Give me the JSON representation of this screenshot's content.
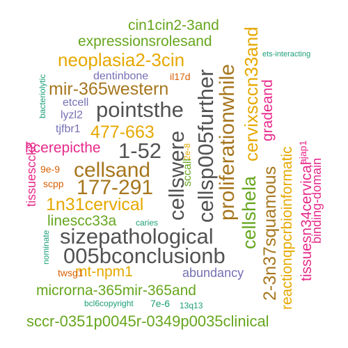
{
  "palette": {
    "dark_gray": "#525252",
    "orange": "#e6a800",
    "brown": "#a6761d",
    "green": "#66a61e",
    "purple": "#7570b3",
    "magenta": "#e7298a",
    "teal": "#1b9e77",
    "rust": "#d95f02"
  },
  "words": [
    {
      "text": "cin1cin2-3and",
      "color": "green"
    },
    {
      "text": "expressionsrolesand",
      "color": "green"
    },
    {
      "text": "neoplasia2-3cin",
      "color": "orange"
    },
    {
      "text": "dentinbone",
      "color": "purple"
    },
    {
      "text": "il17d",
      "color": "rust"
    },
    {
      "text": "mir-365western",
      "color": "brown"
    },
    {
      "text": "etcell",
      "color": "purple"
    },
    {
      "text": "pointsthe",
      "color": "dark_gray"
    },
    {
      "text": "lyzl2",
      "color": "purple"
    },
    {
      "text": "tjfbr1",
      "color": "purple"
    },
    {
      "text": "477-663",
      "color": "orange"
    },
    {
      "text": "hcerepicthe",
      "color": "magenta"
    },
    {
      "text": "1-52",
      "color": "dark_gray"
    },
    {
      "text": "cellsand",
      "color": "brown"
    },
    {
      "text": "9e-9",
      "color": "rust"
    },
    {
      "text": "scpp",
      "color": "rust"
    },
    {
      "text": "177-291",
      "color": "brown"
    },
    {
      "text": "1n31cervical",
      "color": "orange"
    },
    {
      "text": "linescc33a",
      "color": "green"
    },
    {
      "text": "caries",
      "color": "teal"
    },
    {
      "text": "sizepathological",
      "color": "dark_gray"
    },
    {
      "text": "005bconclusionb",
      "color": "dark_gray"
    },
    {
      "text": "mt-npm1",
      "color": "orange"
    },
    {
      "text": "twsg1",
      "color": "rust"
    },
    {
      "text": "abundancy",
      "color": "purple"
    },
    {
      "text": "microrna-365mir-365and",
      "color": "green"
    },
    {
      "text": "bcl6copyright",
      "color": "teal"
    },
    {
      "text": "7e-6",
      "color": "teal"
    },
    {
      "text": "13q13",
      "color": "teal"
    },
    {
      "text": "sccr-0351p0045r-0349p0035clinical",
      "color": "green"
    },
    {
      "text": "ets-interacting",
      "color": "teal"
    },
    {
      "text": "cellswere",
      "color": "dark_gray"
    },
    {
      "text": "cellsp005further",
      "color": "dark_gray"
    },
    {
      "text": "proliferationwhile",
      "color": "brown"
    },
    {
      "text": "cervixsccn33and",
      "color": "orange"
    },
    {
      "text": "gradeand",
      "color": "magenta"
    },
    {
      "text": "cellshela",
      "color": "green"
    },
    {
      "text": "2-3n37squamous",
      "color": "brown"
    },
    {
      "text": "reactionqpcrbioinformatic",
      "color": "orange"
    },
    {
      "text": "ajap1",
      "color": "magenta"
    },
    {
      "text": "tissuesn34cervical",
      "color": "magenta"
    },
    {
      "text": "binding-domain",
      "color": "magenta"
    },
    {
      "text": "sccall",
      "color": "green"
    },
    {
      "text": "2e-8",
      "color": "orange"
    },
    {
      "text": "bacteriolytic",
      "color": "teal"
    },
    {
      "text": "tissuescck8",
      "color": "magenta"
    },
    {
      "text": "nominate",
      "color": "teal"
    }
  ]
}
